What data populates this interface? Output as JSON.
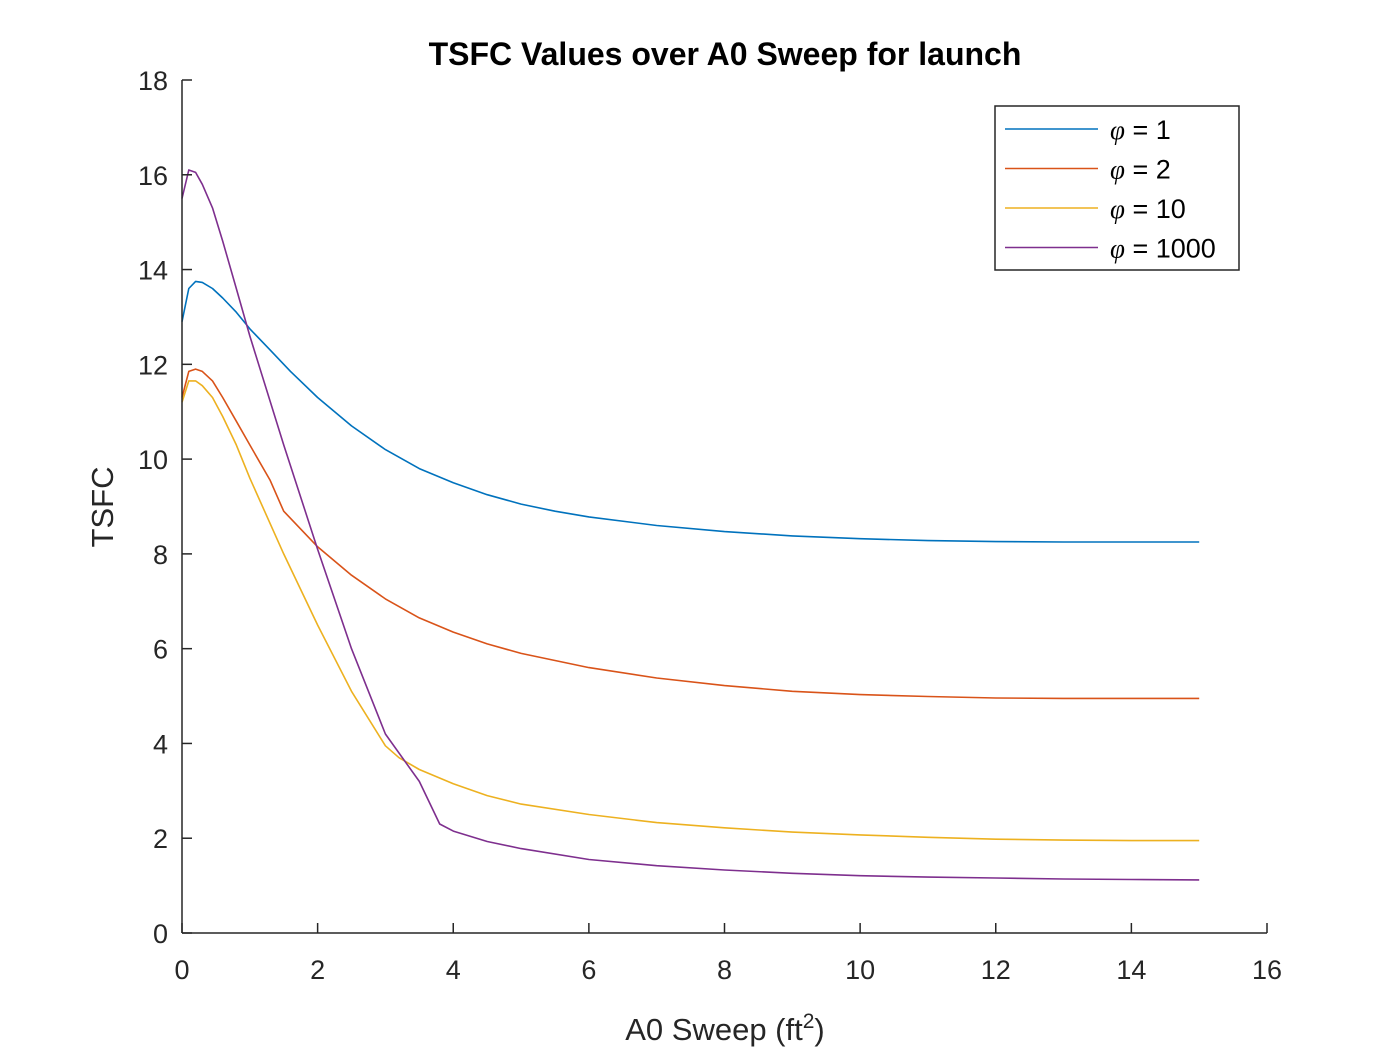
{
  "chart_data": {
    "type": "line",
    "title": "TSFC Values over A0 Sweep for launch",
    "xlabel": "A0 Sweep (ft",
    "xlabel_superscript": "2",
    "xlabel_suffix": ")",
    "ylabel": "TSFC",
    "xlim": [
      0,
      16
    ],
    "ylim": [
      0,
      18
    ],
    "xticks": [
      0,
      2,
      4,
      6,
      8,
      10,
      12,
      14,
      16
    ],
    "yticks": [
      0,
      2,
      4,
      6,
      8,
      10,
      12,
      14,
      16,
      18
    ],
    "grid": false,
    "legend_position": "top-right",
    "legend_symbol": "φ",
    "series": [
      {
        "name": "= 1",
        "color": "#0072BD",
        "points": [
          [
            0,
            12.9
          ],
          [
            0.1,
            13.6
          ],
          [
            0.2,
            13.75
          ],
          [
            0.3,
            13.73
          ],
          [
            0.45,
            13.6
          ],
          [
            0.6,
            13.4
          ],
          [
            0.8,
            13.1
          ],
          [
            1.0,
            12.75
          ],
          [
            1.3,
            12.3
          ],
          [
            1.6,
            11.85
          ],
          [
            2.0,
            11.3
          ],
          [
            2.5,
            10.7
          ],
          [
            3.0,
            10.2
          ],
          [
            3.5,
            9.8
          ],
          [
            4.0,
            9.5
          ],
          [
            4.5,
            9.25
          ],
          [
            5.0,
            9.05
          ],
          [
            5.5,
            8.9
          ],
          [
            6.0,
            8.78
          ],
          [
            7.0,
            8.6
          ],
          [
            8.0,
            8.47
          ],
          [
            9.0,
            8.38
          ],
          [
            10.0,
            8.32
          ],
          [
            11.0,
            8.28
          ],
          [
            12.0,
            8.26
          ],
          [
            13.0,
            8.25
          ],
          [
            14.0,
            8.25
          ],
          [
            15.0,
            8.25
          ]
        ]
      },
      {
        "name": "= 2",
        "color": "#D95319",
        "points": [
          [
            0,
            11.3
          ],
          [
            0.1,
            11.85
          ],
          [
            0.2,
            11.9
          ],
          [
            0.3,
            11.85
          ],
          [
            0.45,
            11.65
          ],
          [
            0.6,
            11.3
          ],
          [
            0.8,
            10.8
          ],
          [
            1.0,
            10.3
          ],
          [
            1.3,
            9.55
          ],
          [
            1.5,
            8.9
          ],
          [
            2.0,
            8.15
          ],
          [
            2.5,
            7.55
          ],
          [
            3.0,
            7.05
          ],
          [
            3.5,
            6.65
          ],
          [
            4.0,
            6.35
          ],
          [
            4.5,
            6.1
          ],
          [
            5.0,
            5.9
          ],
          [
            6.0,
            5.6
          ],
          [
            7.0,
            5.38
          ],
          [
            8.0,
            5.22
          ],
          [
            9.0,
            5.1
          ],
          [
            10.0,
            5.03
          ],
          [
            11.0,
            4.99
          ],
          [
            12.0,
            4.96
          ],
          [
            13.0,
            4.95
          ],
          [
            14.0,
            4.95
          ],
          [
            15.0,
            4.95
          ]
        ]
      },
      {
        "name": "= 10",
        "color": "#EDB120",
        "points": [
          [
            0,
            11.2
          ],
          [
            0.1,
            11.65
          ],
          [
            0.2,
            11.65
          ],
          [
            0.3,
            11.55
          ],
          [
            0.45,
            11.3
          ],
          [
            0.6,
            10.9
          ],
          [
            0.8,
            10.3
          ],
          [
            1.0,
            9.6
          ],
          [
            1.5,
            8.0
          ],
          [
            2.0,
            6.5
          ],
          [
            2.5,
            5.1
          ],
          [
            3.0,
            3.95
          ],
          [
            3.2,
            3.7
          ],
          [
            3.5,
            3.45
          ],
          [
            4.0,
            3.15
          ],
          [
            4.5,
            2.9
          ],
          [
            5.0,
            2.72
          ],
          [
            6.0,
            2.5
          ],
          [
            7.0,
            2.33
          ],
          [
            8.0,
            2.22
          ],
          [
            9.0,
            2.13
          ],
          [
            10.0,
            2.07
          ],
          [
            11.0,
            2.02
          ],
          [
            12.0,
            1.98
          ],
          [
            13.0,
            1.96
          ],
          [
            14.0,
            1.95
          ],
          [
            15.0,
            1.95
          ]
        ]
      },
      {
        "name": "= 1000",
        "color": "#7E2F8E",
        "points": [
          [
            0,
            15.5
          ],
          [
            0.1,
            16.1
          ],
          [
            0.2,
            16.05
          ],
          [
            0.3,
            15.8
          ],
          [
            0.45,
            15.3
          ],
          [
            0.6,
            14.6
          ],
          [
            0.8,
            13.6
          ],
          [
            1.0,
            12.6
          ],
          [
            1.5,
            10.3
          ],
          [
            2.0,
            8.1
          ],
          [
            2.5,
            6.0
          ],
          [
            3.0,
            4.2
          ],
          [
            3.5,
            3.2
          ],
          [
            3.8,
            2.3
          ],
          [
            4.0,
            2.15
          ],
          [
            4.5,
            1.93
          ],
          [
            5.0,
            1.78
          ],
          [
            6.0,
            1.55
          ],
          [
            7.0,
            1.42
          ],
          [
            8.0,
            1.33
          ],
          [
            9.0,
            1.26
          ],
          [
            10.0,
            1.21
          ],
          [
            11.0,
            1.18
          ],
          [
            12.0,
            1.16
          ],
          [
            13.0,
            1.14
          ],
          [
            14.0,
            1.13
          ],
          [
            15.0,
            1.12
          ]
        ]
      }
    ]
  }
}
